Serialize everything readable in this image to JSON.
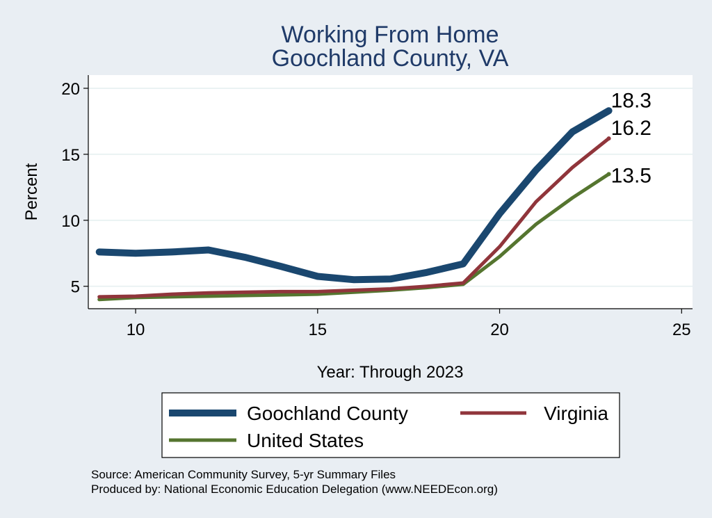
{
  "chart_data": {
    "type": "line",
    "title": "Working From Home",
    "subtitle": "Goochland County, VA",
    "xlabel": "Year: Through 2023",
    "ylabel": "Percent",
    "xlim": [
      8.7,
      25.3
    ],
    "ylim": [
      3.3,
      21
    ],
    "x_ticks": [
      10,
      15,
      20,
      25
    ],
    "y_ticks": [
      5,
      10,
      15,
      20
    ],
    "grid": true,
    "legend_position": "bottom",
    "series": [
      {
        "name": "Goochland County",
        "color": "#1a476f",
        "x": [
          9,
          10,
          11,
          12,
          13,
          14,
          15,
          16,
          17,
          18,
          19,
          20,
          21,
          22,
          23
        ],
        "values": [
          7.6,
          7.5,
          7.6,
          7.75,
          7.2,
          6.5,
          5.75,
          5.5,
          5.55,
          6.05,
          6.7,
          10.5,
          13.8,
          16.7,
          18.3
        ],
        "end_label": "18.3"
      },
      {
        "name": "Virginia",
        "color": "#90353b",
        "x": [
          9,
          10,
          11,
          12,
          13,
          14,
          15,
          16,
          17,
          18,
          19,
          20,
          21,
          22,
          23
        ],
        "values": [
          4.2,
          4.25,
          4.4,
          4.5,
          4.55,
          4.6,
          4.6,
          4.7,
          4.8,
          5.0,
          5.25,
          8.0,
          11.4,
          14.0,
          16.2
        ],
        "end_label": "16.2"
      },
      {
        "name": "United States",
        "color": "#55752f",
        "x": [
          9,
          10,
          11,
          12,
          13,
          14,
          15,
          16,
          17,
          18,
          19,
          20,
          21,
          22,
          23
        ],
        "values": [
          4.0,
          4.15,
          4.2,
          4.25,
          4.3,
          4.35,
          4.4,
          4.55,
          4.7,
          4.9,
          5.15,
          7.25,
          9.7,
          11.7,
          13.5
        ],
        "end_label": "13.5"
      }
    ],
    "notes": [
      "Source: American Community Survey, 5-yr Summary Files",
      "Produced by: National Economic Education Delegation (www.NEEDEcon.org)"
    ]
  }
}
